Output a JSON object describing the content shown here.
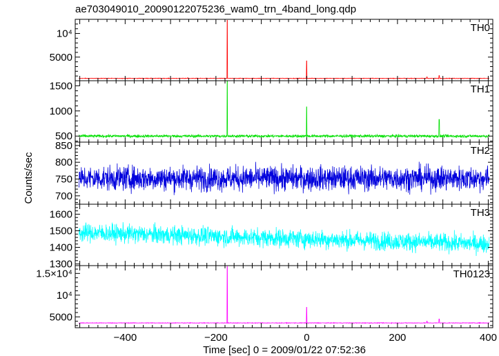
{
  "chart_data": {
    "type": "line",
    "title": "ae703049010_20090122075236_wam0_trn_4band_long.qdp",
    "xlabel": "Time [sec] 0 = 2009/01/22 07:52:36",
    "ylabel": "Counts/sec",
    "xlim": [
      -510,
      410
    ],
    "xticks": [
      {
        "value": -400,
        "label": "−400"
      },
      {
        "value": -200,
        "label": "−200"
      },
      {
        "value": 0,
        "label": "0"
      },
      {
        "value": 200,
        "label": "200"
      },
      {
        "value": 400,
        "label": "400"
      }
    ],
    "grid": false,
    "panels": [
      {
        "name": "TH0",
        "color": "#ff0000",
        "ylim": [
          0,
          13000
        ],
        "yticks": [
          {
            "value": 5000,
            "label": "5000"
          },
          {
            "value": 10000,
            "label": "10⁴"
          }
        ],
        "baseline": 500,
        "noise": 55,
        "spikes": [
          {
            "x": -175,
            "y": 12800
          },
          {
            "x": 0,
            "y": 4200
          },
          {
            "x": 292,
            "y": 1100
          },
          {
            "x": 265,
            "y": 800
          },
          {
            "x": -262,
            "y": 650
          }
        ]
      },
      {
        "name": "TH1",
        "color": "#00e000",
        "ylim": [
          380,
          1600
        ],
        "yticks": [
          {
            "value": 500,
            "label": "500"
          },
          {
            "value": 1000,
            "label": "1000"
          },
          {
            "value": 1500,
            "label": "1500"
          }
        ],
        "baseline": 500,
        "noise": 28,
        "spikes": [
          {
            "x": -175,
            "y": 1590
          },
          {
            "x": 0,
            "y": 1080
          },
          {
            "x": 292,
            "y": 830
          }
        ]
      },
      {
        "name": "TH2",
        "color": "#0000dd",
        "ylim": [
          675,
          860
        ],
        "yticks": [
          {
            "value": 700,
            "label": "700"
          },
          {
            "value": 750,
            "label": "750"
          },
          {
            "value": 800,
            "label": "800"
          },
          {
            "value": 850,
            "label": "850"
          }
        ],
        "baseline": 752,
        "noise": 36,
        "spikes": []
      },
      {
        "name": "TH3",
        "color": "#00ffff",
        "ylim": [
          1290,
          1660
        ],
        "yticks": [
          {
            "value": 1300,
            "label": "1300"
          },
          {
            "value": 1400,
            "label": "1400"
          },
          {
            "value": 1500,
            "label": "1500"
          },
          {
            "value": 1600,
            "label": "1600"
          }
        ],
        "baseline": 1450,
        "trend_start": 1490,
        "trend_end": 1420,
        "noise": 55,
        "spikes": []
      },
      {
        "name": "TH0123",
        "color": "#ff00ff",
        "ylim": [
          2500,
          16800
        ],
        "yticks": [
          {
            "value": 5000,
            "label": "5000"
          },
          {
            "value": 10000,
            "label": "10⁴"
          },
          {
            "value": 15000,
            "label": "1.5×10⁴"
          }
        ],
        "baseline": 3600,
        "noise": 70,
        "spikes": [
          {
            "x": -175,
            "y": 16600
          },
          {
            "x": 0,
            "y": 7200
          },
          {
            "x": 292,
            "y": 4500
          },
          {
            "x": 265,
            "y": 4000
          }
        ]
      }
    ]
  }
}
